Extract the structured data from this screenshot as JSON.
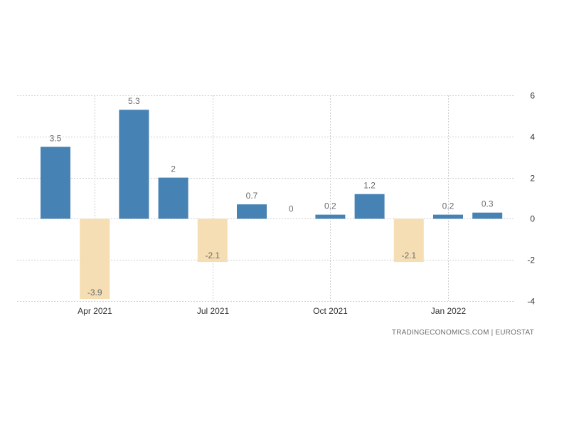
{
  "chart_data": {
    "type": "bar",
    "categories": [
      "Mar 2021",
      "Apr 2021",
      "May 2021",
      "Jun 2021",
      "Jul 2021",
      "Aug 2021",
      "Sep 2021",
      "Oct 2021",
      "Nov 2021",
      "Dec 2021",
      "Jan 2022",
      "Feb 2022"
    ],
    "values": [
      3.5,
      -3.9,
      5.3,
      2,
      -2.1,
      0.7,
      0,
      0.2,
      1.2,
      -2.1,
      0.2,
      0.3
    ],
    "data_labels": [
      "3.5",
      "-3.9",
      "5.3",
      "2",
      "-2.1",
      "0.7",
      "0",
      "0.2",
      "1.2",
      "-2.1",
      "0.2",
      "0.3"
    ],
    "x_ticks": [
      {
        "label": "Apr 2021",
        "category": "Apr 2021"
      },
      {
        "label": "Jul 2021",
        "category": "Jul 2021"
      },
      {
        "label": "Oct 2021",
        "category": "Oct 2021"
      },
      {
        "label": "Jan 2022",
        "category": "Jan 2022"
      }
    ],
    "y_ticks": [
      6,
      4,
      2,
      0,
      -2,
      -4
    ],
    "ylim": [
      -4,
      6
    ],
    "y_axis_side": "right",
    "grid": true,
    "colors": {
      "positive": "#4682b4",
      "negative": "#f5deb3"
    },
    "title": "",
    "xlabel": "",
    "ylabel": ""
  },
  "source_text": "TRADINGECONOMICS.COM  |  EUROSTAT"
}
